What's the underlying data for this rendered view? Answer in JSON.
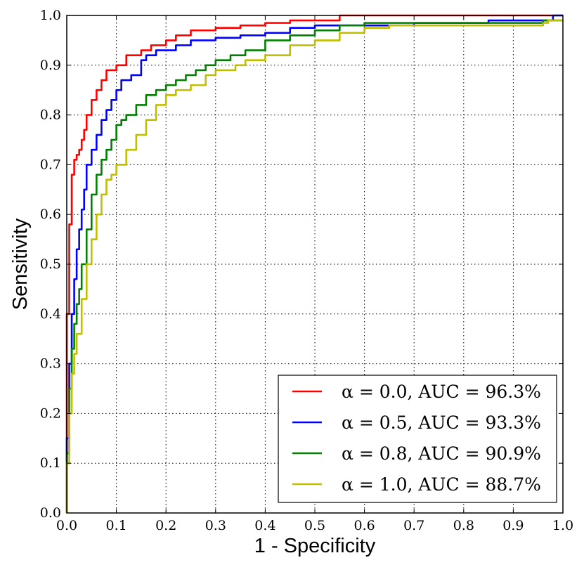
{
  "chart_data": {
    "type": "line",
    "title": "",
    "xlabel": "1 - Specificity",
    "ylabel": "Sensitivity",
    "xlim": [
      0.0,
      1.0
    ],
    "ylim": [
      0.0,
      1.0
    ],
    "xticks": [
      0.0,
      0.1,
      0.2,
      0.3,
      0.4,
      0.5,
      0.6,
      0.7,
      0.8,
      0.9,
      1.0
    ],
    "yticks": [
      0.0,
      0.1,
      0.2,
      0.3,
      0.4,
      0.5,
      0.6,
      0.7,
      0.8,
      0.9,
      1.0
    ],
    "xtick_labels": [
      "0.0",
      "0.1",
      "0.2",
      "0.3",
      "0.4",
      "0.5",
      "0.6",
      "0.7",
      "0.8",
      "0.9",
      "1.0"
    ],
    "ytick_labels": [
      "0.0",
      "0.1",
      "0.2",
      "0.3",
      "0.4",
      "0.5",
      "0.6",
      "0.7",
      "0.8",
      "0.9",
      "1.0"
    ],
    "grid": true,
    "legend_position": "bottom-right",
    "series": [
      {
        "name": "α = 0.0, AUC = 96.3%",
        "legend_label": "α = 0.0, AUC = 96.3%",
        "color": "#ff0000",
        "x": [
          0.0,
          0.0,
          0.005,
          0.01,
          0.015,
          0.02,
          0.025,
          0.03,
          0.035,
          0.04,
          0.05,
          0.06,
          0.07,
          0.08,
          0.09,
          0.1,
          0.11,
          0.12,
          0.13,
          0.15,
          0.17,
          0.2,
          0.22,
          0.25,
          0.3,
          0.35,
          0.4,
          0.45,
          0.5,
          0.55,
          0.56,
          1.0
        ],
        "y": [
          0.0,
          0.4,
          0.58,
          0.68,
          0.71,
          0.72,
          0.73,
          0.75,
          0.77,
          0.8,
          0.83,
          0.85,
          0.87,
          0.89,
          0.89,
          0.9,
          0.9,
          0.92,
          0.92,
          0.93,
          0.94,
          0.95,
          0.96,
          0.97,
          0.975,
          0.98,
          0.985,
          0.99,
          0.99,
          1.0,
          1.0,
          1.0
        ]
      },
      {
        "name": "α = 0.5, AUC = 93.3%",
        "legend_label": "α = 0.5, AUC = 93.3%",
        "color": "#0000ff",
        "x": [
          0.0,
          0.0,
          0.005,
          0.01,
          0.015,
          0.02,
          0.025,
          0.03,
          0.035,
          0.04,
          0.05,
          0.06,
          0.07,
          0.08,
          0.09,
          0.1,
          0.11,
          0.12,
          0.13,
          0.15,
          0.16,
          0.18,
          0.2,
          0.22,
          0.25,
          0.3,
          0.35,
          0.4,
          0.45,
          0.5,
          0.55,
          0.6,
          0.7,
          0.8,
          0.85,
          0.95,
          0.98,
          1.0
        ],
        "y": [
          0.0,
          0.15,
          0.3,
          0.4,
          0.47,
          0.53,
          0.57,
          0.61,
          0.65,
          0.7,
          0.73,
          0.76,
          0.79,
          0.81,
          0.83,
          0.85,
          0.87,
          0.87,
          0.88,
          0.91,
          0.92,
          0.93,
          0.93,
          0.94,
          0.95,
          0.955,
          0.96,
          0.965,
          0.975,
          0.98,
          0.98,
          0.98,
          0.985,
          0.985,
          0.99,
          0.99,
          1.0,
          1.0
        ]
      },
      {
        "name": "α = 0.8, AUC = 90.9%",
        "legend_label": "α = 0.8, AUC = 90.9%",
        "color": "#008000",
        "x": [
          0.0,
          0.0,
          0.005,
          0.01,
          0.015,
          0.02,
          0.025,
          0.03,
          0.04,
          0.05,
          0.06,
          0.07,
          0.08,
          0.09,
          0.1,
          0.11,
          0.12,
          0.14,
          0.16,
          0.18,
          0.2,
          0.22,
          0.24,
          0.26,
          0.28,
          0.3,
          0.33,
          0.36,
          0.4,
          0.45,
          0.5,
          0.55,
          0.6,
          0.65,
          0.7,
          0.8,
          0.9,
          0.96,
          1.0
        ],
        "y": [
          0.0,
          0.12,
          0.25,
          0.33,
          0.38,
          0.42,
          0.45,
          0.5,
          0.57,
          0.64,
          0.68,
          0.71,
          0.73,
          0.75,
          0.78,
          0.79,
          0.8,
          0.82,
          0.84,
          0.85,
          0.86,
          0.87,
          0.88,
          0.89,
          0.9,
          0.91,
          0.92,
          0.93,
          0.95,
          0.96,
          0.97,
          0.98,
          0.985,
          0.985,
          0.985,
          0.985,
          0.985,
          0.99,
          0.99
        ]
      },
      {
        "name": "α = 1.0, AUC = 88.7%",
        "legend_label": "α = 1.0, AUC = 88.7%",
        "color": "#bfbf00",
        "x": [
          0.0,
          0.0,
          0.005,
          0.01,
          0.015,
          0.02,
          0.03,
          0.04,
          0.05,
          0.06,
          0.07,
          0.08,
          0.09,
          0.1,
          0.12,
          0.14,
          0.16,
          0.18,
          0.2,
          0.22,
          0.25,
          0.28,
          0.3,
          0.34,
          0.36,
          0.4,
          0.45,
          0.5,
          0.55,
          0.6,
          0.65,
          0.7,
          0.8,
          0.9,
          0.96,
          0.97,
          1.0
        ],
        "y": [
          0.0,
          0.1,
          0.2,
          0.28,
          0.32,
          0.36,
          0.43,
          0.5,
          0.55,
          0.6,
          0.64,
          0.67,
          0.68,
          0.7,
          0.73,
          0.76,
          0.79,
          0.82,
          0.84,
          0.85,
          0.86,
          0.88,
          0.89,
          0.9,
          0.91,
          0.92,
          0.94,
          0.95,
          0.965,
          0.975,
          0.98,
          0.98,
          0.98,
          0.98,
          0.985,
          0.99,
          0.99
        ]
      }
    ]
  }
}
